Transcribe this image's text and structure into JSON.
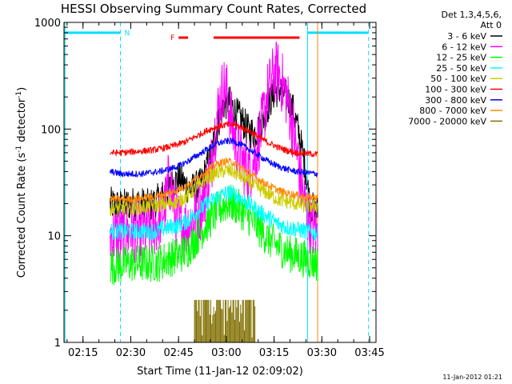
{
  "chart_data": {
    "type": "line",
    "title": "HESSI Observing Summary Count Rates, Corrected",
    "xlabel": "Start Time (11-Jan-12 02:09:02)",
    "ylabel": "Corrected Count Rate (s",
    "ylabel_sup1": "-1",
    "ylabel_mid": " detector",
    "ylabel_sup2": "-1",
    "ylabel_end": ")",
    "x_scale": "time",
    "y_scale": "log",
    "xlim": [
      "02:09:02",
      "03:47:00"
    ],
    "ylim": [
      1,
      1000
    ],
    "x_ticks": [
      "02:15",
      "02:30",
      "02:45",
      "03:00",
      "03:15",
      "03:30",
      "03:45"
    ],
    "y_ticks": [
      {
        "value": 1,
        "label": "1"
      },
      {
        "value": 10,
        "label": "10"
      },
      {
        "value": 100,
        "label": "100"
      },
      {
        "value": 1000,
        "label": "1000"
      }
    ],
    "legend": {
      "header1": "Det 1,3,4,5,6,",
      "header2": "Att 0",
      "placement": "right"
    },
    "series": [
      {
        "name": "3 - 6 keV",
        "color": "#000000",
        "noise": 0.16,
        "points": [
          [
            "02:23:30",
            20
          ],
          [
            "02:27",
            19
          ],
          [
            "02:30",
            20
          ],
          [
            "02:33",
            20
          ],
          [
            "02:36",
            19
          ],
          [
            "02:39",
            22
          ],
          [
            "02:41",
            25
          ],
          [
            "02:43",
            30
          ],
          [
            "02:45",
            35
          ],
          [
            "02:47",
            30
          ],
          [
            "02:49",
            27
          ],
          [
            "02:52",
            30
          ],
          [
            "02:55",
            55
          ],
          [
            "02:57",
            100
          ],
          [
            "02:59",
            170
          ],
          [
            "03:01",
            180
          ],
          [
            "03:03",
            140
          ],
          [
            "03:05",
            120
          ],
          [
            "03:07",
            95
          ],
          [
            "03:09",
            92
          ],
          [
            "03:11",
            110
          ],
          [
            "03:13",
            160
          ],
          [
            "03:15",
            220
          ],
          [
            "03:17",
            240
          ],
          [
            "03:19",
            200
          ],
          [
            "03:21",
            150
          ],
          [
            "03:23",
            85
          ],
          [
            "03:25",
            40
          ],
          [
            "03:26",
            22
          ],
          [
            "03:27",
            18
          ],
          [
            "03:28",
            17
          ],
          [
            "03:28:45",
            17
          ]
        ]
      },
      {
        "name": "6 - 12 keV",
        "color": "#ff00ff",
        "noise": 0.3,
        "points": [
          [
            "02:23:30",
            10
          ],
          [
            "02:27",
            10
          ],
          [
            "02:30",
            11
          ],
          [
            "02:33",
            11
          ],
          [
            "02:36",
            11
          ],
          [
            "02:39",
            14
          ],
          [
            "02:41",
            20
          ],
          [
            "02:42",
            35
          ],
          [
            "02:43",
            25
          ],
          [
            "02:44",
            16
          ],
          [
            "02:45",
            13
          ],
          [
            "02:47",
            12
          ],
          [
            "02:49",
            14
          ],
          [
            "02:52",
            18
          ],
          [
            "02:55",
            40
          ],
          [
            "02:57",
            130
          ],
          [
            "02:59",
            250
          ],
          [
            "03:00",
            230
          ],
          [
            "03:01",
            150
          ],
          [
            "03:03",
            70
          ],
          [
            "03:05",
            50
          ],
          [
            "03:07",
            40
          ],
          [
            "03:09",
            55
          ],
          [
            "03:11",
            100
          ],
          [
            "03:13",
            220
          ],
          [
            "03:15",
            330
          ],
          [
            "03:16",
            350
          ],
          [
            "03:17",
            300
          ],
          [
            "03:19",
            200
          ],
          [
            "03:21",
            100
          ],
          [
            "03:23",
            40
          ],
          [
            "03:24",
            25
          ],
          [
            "03:25",
            18
          ],
          [
            "03:26",
            14
          ],
          [
            "03:27",
            12
          ],
          [
            "03:28",
            11
          ],
          [
            "03:28:45",
            10
          ]
        ]
      },
      {
        "name": "12 - 25 keV",
        "color": "#00ff00",
        "noise": 0.18,
        "points": [
          [
            "02:23:30",
            5.2
          ],
          [
            "02:27",
            5.3
          ],
          [
            "02:30",
            5.5
          ],
          [
            "02:33",
            5.5
          ],
          [
            "02:36",
            5.5
          ],
          [
            "02:39",
            5.6
          ],
          [
            "02:42",
            6.2
          ],
          [
            "02:45",
            6.5
          ],
          [
            "02:48",
            7.5
          ],
          [
            "02:51",
            10
          ],
          [
            "02:54",
            13
          ],
          [
            "02:57",
            17
          ],
          [
            "03:00",
            20
          ],
          [
            "03:02",
            20
          ],
          [
            "03:04",
            18
          ],
          [
            "03:07",
            15
          ],
          [
            "03:10",
            12
          ],
          [
            "03:13",
            9.5
          ],
          [
            "03:16",
            8
          ],
          [
            "03:19",
            7
          ],
          [
            "03:22",
            6.5
          ],
          [
            "03:25",
            6
          ],
          [
            "03:28:45",
            5.5
          ]
        ]
      },
      {
        "name": "25 - 50 keV",
        "color": "#00ffff",
        "noise": 0.08,
        "points": [
          [
            "02:23:30",
            11
          ],
          [
            "02:27",
            11
          ],
          [
            "02:30",
            11
          ],
          [
            "02:33",
            11
          ],
          [
            "02:36",
            11
          ],
          [
            "02:39",
            11.3
          ],
          [
            "02:42",
            12
          ],
          [
            "02:45",
            12.5
          ],
          [
            "02:48",
            14
          ],
          [
            "02:51",
            17
          ],
          [
            "02:54",
            20
          ],
          [
            "02:57",
            23
          ],
          [
            "03:00",
            25
          ],
          [
            "03:02",
            25
          ],
          [
            "03:04",
            23
          ],
          [
            "03:07",
            20
          ],
          [
            "03:10",
            17
          ],
          [
            "03:13",
            15
          ],
          [
            "03:16",
            13
          ],
          [
            "03:19",
            12
          ],
          [
            "03:22",
            11.5
          ],
          [
            "03:25",
            11
          ],
          [
            "03:28:45",
            10.5
          ]
        ]
      },
      {
        "name": "50 - 100 keV",
        "color": "#cccc00",
        "noise": 0.07,
        "points": [
          [
            "02:23:30",
            18
          ],
          [
            "02:27",
            18
          ],
          [
            "02:30",
            18
          ],
          [
            "02:33",
            18.5
          ],
          [
            "02:36",
            19
          ],
          [
            "02:39",
            19.5
          ],
          [
            "02:42",
            20
          ],
          [
            "02:45",
            21
          ],
          [
            "02:48",
            24
          ],
          [
            "02:51",
            29
          ],
          [
            "02:54",
            35
          ],
          [
            "02:57",
            39
          ],
          [
            "03:00",
            41
          ],
          [
            "03:02",
            40
          ],
          [
            "03:04",
            37
          ],
          [
            "03:07",
            32
          ],
          [
            "03:10",
            28
          ],
          [
            "03:13",
            25
          ],
          [
            "03:16",
            22
          ],
          [
            "03:19",
            21
          ],
          [
            "03:22",
            20
          ],
          [
            "03:25",
            19
          ],
          [
            "03:28:45",
            19
          ]
        ]
      },
      {
        "name": "100 - 300 keV",
        "color": "#ff0000",
        "noise": 0.03,
        "points": [
          [
            "02:23:30",
            60
          ],
          [
            "02:27",
            60
          ],
          [
            "02:30",
            61
          ],
          [
            "02:33",
            62
          ],
          [
            "02:36",
            63
          ],
          [
            "02:39",
            65
          ],
          [
            "02:42",
            68
          ],
          [
            "02:45",
            72
          ],
          [
            "02:48",
            78
          ],
          [
            "02:51",
            87
          ],
          [
            "02:54",
            97
          ],
          [
            "02:57",
            105
          ],
          [
            "03:00",
            110
          ],
          [
            "03:02",
            110
          ],
          [
            "03:04",
            106
          ],
          [
            "03:07",
            96
          ],
          [
            "03:10",
            85
          ],
          [
            "03:13",
            75
          ],
          [
            "03:16",
            68
          ],
          [
            "03:19",
            63
          ],
          [
            "03:22",
            60
          ],
          [
            "03:25",
            59
          ],
          [
            "03:28:45",
            58
          ]
        ]
      },
      {
        "name": "300 - 800 keV",
        "color": "#0000ff",
        "noise": 0.03,
        "points": [
          [
            "02:23:30",
            40
          ],
          [
            "02:27",
            38
          ],
          [
            "02:30",
            38
          ],
          [
            "02:33",
            38
          ],
          [
            "02:36",
            39
          ],
          [
            "02:39",
            40
          ],
          [
            "02:42",
            42
          ],
          [
            "02:45",
            45
          ],
          [
            "02:48",
            50
          ],
          [
            "02:51",
            57
          ],
          [
            "02:54",
            65
          ],
          [
            "02:57",
            73
          ],
          [
            "03:00",
            77
          ],
          [
            "03:02",
            77
          ],
          [
            "03:04",
            73
          ],
          [
            "03:07",
            65
          ],
          [
            "03:10",
            57
          ],
          [
            "03:13",
            50
          ],
          [
            "03:16",
            45
          ],
          [
            "03:19",
            42
          ],
          [
            "03:22",
            40
          ],
          [
            "03:25",
            39
          ],
          [
            "03:28:45",
            38
          ]
        ]
      },
      {
        "name": "800 - 7000 keV",
        "color": "#ff8800",
        "noise": 0.035,
        "points": [
          [
            "02:23:30",
            22
          ],
          [
            "02:27",
            22
          ],
          [
            "02:30",
            22
          ],
          [
            "02:33",
            22.5
          ],
          [
            "02:36",
            23
          ],
          [
            "02:39",
            24
          ],
          [
            "02:42",
            25
          ],
          [
            "02:45",
            27
          ],
          [
            "02:48",
            30
          ],
          [
            "02:51",
            35
          ],
          [
            "02:54",
            41
          ],
          [
            "02:57",
            47
          ],
          [
            "03:00",
            50
          ],
          [
            "03:02",
            49
          ],
          [
            "03:04",
            45
          ],
          [
            "03:07",
            39
          ],
          [
            "03:10",
            34
          ],
          [
            "03:13",
            30
          ],
          [
            "03:16",
            27
          ],
          [
            "03:19",
            25
          ],
          [
            "03:22",
            24
          ],
          [
            "03:25",
            23
          ],
          [
            "03:28:45",
            23
          ]
        ]
      },
      {
        "name": "7000 - 20000 keV",
        "color": "#807000",
        "noise": 0,
        "points": [
          [
            "02:50",
            1
          ],
          [
            "02:50",
            2.5
          ],
          [
            "03:09",
            2.5
          ],
          [
            "03:09",
            1
          ]
        ]
      }
    ],
    "bars": [
      {
        "label": "",
        "color": "#00e0ff",
        "start": "02:09:02",
        "end": "02:26:45",
        "level": 800
      },
      {
        "label": "N",
        "color": "#00e0ff",
        "start": "02:27:00",
        "end": "02:27:00",
        "level": 800
      },
      {
        "label": "F",
        "color": "#ff0000",
        "start": "02:45:00",
        "end": "02:48:00",
        "level": 720
      },
      {
        "label": "",
        "color": "#ff0000",
        "start": "02:56:00",
        "end": "03:23:00",
        "level": 720
      },
      {
        "label": "",
        "color": "#00e0ff",
        "start": "03:25:30",
        "end": "03:44:30",
        "level": 800
      }
    ],
    "markers": [
      {
        "time": "02:09:20",
        "color": "#00e0ff",
        "style": "solid"
      },
      {
        "time": "02:26:45",
        "color": "#00e0ff",
        "style": "dashed"
      },
      {
        "time": "03:25:30",
        "color": "#00e0ff",
        "style": "solid"
      },
      {
        "time": "03:28:40",
        "color": "#ff8800",
        "style": "solid"
      },
      {
        "time": "03:44:40",
        "color": "#00e0ff",
        "style": "dashed"
      }
    ],
    "grid": false
  },
  "footer": {
    "stamp": "11-Jan-2012 01:21"
  }
}
